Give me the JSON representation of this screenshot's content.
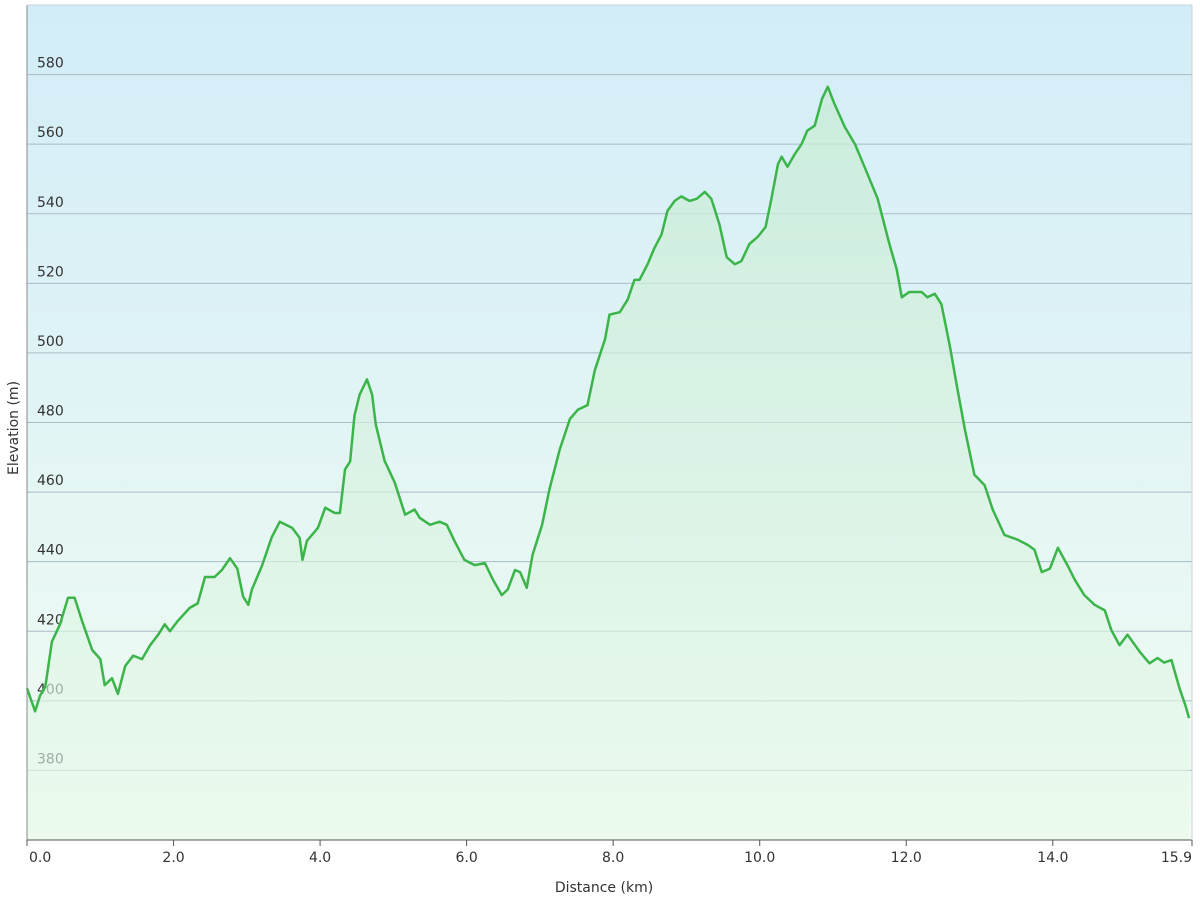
{
  "chart_data": {
    "type": "area-line",
    "xlabel": "Distance  (km)",
    "ylabel": "Elevation (m)",
    "color": "#3bb54a",
    "xlim": [
      0,
      15.9
    ],
    "ylim": [
      360,
      600
    ],
    "xticks": [
      {
        "value": 0,
        "label": "0.0"
      },
      {
        "value": 2,
        "label": "2.0"
      },
      {
        "value": 4,
        "label": "4.0"
      },
      {
        "value": 6,
        "label": "6.0"
      },
      {
        "value": 8,
        "label": "8.0"
      },
      {
        "value": 10,
        "label": "10.0"
      },
      {
        "value": 12,
        "label": "12.0"
      },
      {
        "value": 14,
        "label": "14.0"
      },
      {
        "value": 15.9,
        "label": "15.9"
      }
    ],
    "yticks": [
      380,
      400,
      420,
      440,
      460,
      480,
      500,
      520,
      540,
      560,
      580
    ],
    "grid": true,
    "x": [
      0,
      0.11,
      0.18,
      0.25,
      0.34,
      0.45,
      0.56,
      0.65,
      0.75,
      0.89,
      1.0,
      1.06,
      1.16,
      1.24,
      1.34,
      1.45,
      1.57,
      1.68,
      1.79,
      1.88,
      1.95,
      2.06,
      2.22,
      2.33,
      2.43,
      2.56,
      2.66,
      2.77,
      2.87,
      2.95,
      3.02,
      3.07,
      3.21,
      3.34,
      3.45,
      3.62,
      3.72,
      3.76,
      3.82,
      3.97,
      4.07,
      4.2,
      4.27,
      4.34,
      4.41,
      4.47,
      4.54,
      4.64,
      4.71,
      4.76,
      4.88,
      5.02,
      5.16,
      5.29,
      5.36,
      5.5,
      5.63,
      5.73,
      5.84,
      5.97,
      6.11,
      6.25,
      6.36,
      6.48,
      6.56,
      6.66,
      6.73,
      6.82,
      6.9,
      7.03,
      7.13,
      7.27,
      7.41,
      7.52,
      7.65,
      7.75,
      7.89,
      7.95,
      8.09,
      8.2,
      8.29,
      8.36,
      8.47,
      8.56,
      8.66,
      8.74,
      8.84,
      8.93,
      9.04,
      9.14,
      9.25,
      9.34,
      9.45,
      9.55,
      9.66,
      9.75,
      9.86,
      9.97,
      10.08,
      10.16,
      10.25,
      10.3,
      10.38,
      10.48,
      10.57,
      10.65,
      10.75,
      10.85,
      10.93,
      11.02,
      11.16,
      11.3,
      11.43,
      11.61,
      11.77,
      11.87,
      11.94,
      12.04,
      12.21,
      12.29,
      12.39,
      12.48,
      12.59,
      12.7,
      12.8,
      12.93,
      13.07,
      13.18,
      13.34,
      13.52,
      13.66,
      13.75,
      13.85,
      13.96,
      14.07,
      14.2,
      14.3,
      14.43,
      14.57,
      14.71,
      14.8,
      14.91,
      15.02,
      15.19,
      15.32,
      15.43,
      15.52,
      15.62,
      15.73,
      15.81,
      15.86
    ],
    "values": [
      403.6,
      397,
      401.6,
      404,
      417,
      422,
      429.6,
      429.6,
      423,
      414.6,
      412,
      404.5,
      406.5,
      402,
      410,
      413,
      412,
      416,
      419,
      422,
      420,
      423,
      426.7,
      428,
      435.6,
      435.6,
      437.6,
      441,
      438,
      430,
      427.6,
      432,
      439,
      447,
      451.5,
      449.7,
      446.9,
      440.5,
      446,
      449.7,
      455.5,
      454,
      454,
      466.5,
      468.8,
      482,
      488,
      492.4,
      488,
      479.4,
      469,
      462.7,
      453.5,
      455,
      452.6,
      450.6,
      451.5,
      450.6,
      445.7,
      440.5,
      439,
      439.6,
      434.8,
      430.4,
      432,
      437.6,
      437,
      432.5,
      442,
      450.6,
      460.7,
      472.2,
      481,
      483.7,
      485,
      495,
      504,
      511,
      511.7,
      515.4,
      521,
      521,
      525.5,
      530,
      534,
      540.8,
      543.7,
      545,
      543.7,
      544.3,
      546.3,
      544.3,
      537,
      527.5,
      525.5,
      526.4,
      531.3,
      533.3,
      536.2,
      544.3,
      554.3,
      556.4,
      553.5,
      557.2,
      560,
      563.9,
      565.3,
      573,
      576.5,
      571.6,
      565,
      560,
      553.5,
      544.3,
      531.3,
      524,
      516,
      517.5,
      517.5,
      516,
      517,
      514,
      502.5,
      489.5,
      478,
      465,
      462,
      455,
      447.7,
      446.3,
      444.8,
      443.4,
      437,
      438,
      444,
      439,
      434.8,
      430.4,
      427.6,
      426,
      420.3,
      416,
      419,
      414,
      410.8,
      412.3,
      411,
      411.7,
      403.6,
      398.7,
      395
    ]
  }
}
